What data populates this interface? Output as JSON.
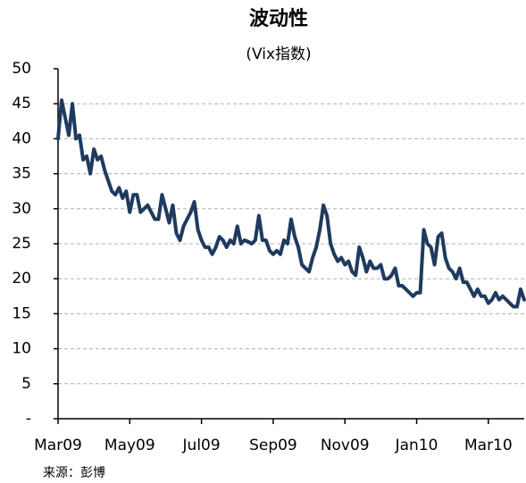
{
  "chart_data": {
    "type": "line",
    "title": "波动性",
    "subtitle": "(Vix指数)",
    "source": "来源：彭博",
    "color": "#1f3a5f",
    "grid": true,
    "categories": [
      "Mar09",
      null,
      null,
      null,
      null,
      null,
      null,
      null,
      null,
      null,
      null,
      null,
      null,
      null,
      null,
      null,
      null,
      null,
      null,
      null,
      "May09",
      null,
      null,
      null,
      null,
      null,
      null,
      null,
      null,
      null,
      null,
      null,
      null,
      null,
      null,
      null,
      null,
      null,
      null,
      null,
      "Jul09",
      null,
      null,
      null,
      null,
      null,
      null,
      null,
      null,
      null,
      null,
      null,
      null,
      null,
      null,
      null,
      null,
      null,
      null,
      null,
      "Sep09",
      null,
      null,
      null,
      null,
      null,
      null,
      null,
      null,
      null,
      null,
      null,
      null,
      null,
      null,
      null,
      null,
      null,
      null,
      null,
      "Nov09",
      null,
      null,
      null,
      null,
      null,
      null,
      null,
      null,
      null,
      null,
      null,
      null,
      null,
      null,
      null,
      null,
      null,
      null,
      null,
      "Jan10",
      null,
      null,
      null,
      null,
      null,
      null,
      null,
      null,
      null,
      null,
      null,
      null,
      null,
      null,
      null,
      null,
      null,
      null,
      null,
      "Mar10",
      null,
      null,
      null,
      null,
      null,
      null,
      null,
      null,
      null,
      null
    ],
    "values": [
      40,
      45.5,
      43,
      40.5,
      45,
      40,
      40.5,
      37,
      37.5,
      35,
      38.5,
      37,
      37.5,
      35.5,
      34,
      32.5,
      32,
      33,
      31.5,
      32.5,
      29.5,
      32,
      32,
      29.5,
      30,
      30.5,
      29.5,
      28.5,
      28.5,
      32,
      30,
      28,
      30.5,
      26.5,
      25.5,
      27.5,
      28.5,
      29.5,
      31,
      27,
      25.5,
      24.5,
      24.5,
      23.5,
      24.5,
      26,
      25.5,
      24.5,
      25.5,
      25,
      27.5,
      25,
      25.5,
      25.3,
      25,
      25.5,
      29,
      25.5,
      25.5,
      24,
      23.5,
      24,
      23.5,
      25.5,
      25,
      28.5,
      26,
      24.5,
      22,
      21.5,
      21,
      23,
      24.5,
      27,
      30.5,
      29,
      25,
      23.5,
      22.5,
      23,
      22,
      22.5,
      21,
      20.5,
      24.5,
      23,
      21,
      22.5,
      21.5,
      21.5,
      22,
      20,
      20,
      20.5,
      21.5,
      19,
      19,
      18.5,
      18,
      17.5,
      18,
      18,
      27,
      25,
      24.5,
      22,
      26,
      26.5,
      23,
      21.5,
      21,
      20,
      21.5,
      19.5,
      19.5,
      18.5,
      17.5,
      18.5,
      17.5,
      17.5,
      16.5,
      17,
      18,
      17,
      17.5,
      17,
      16.5,
      16,
      16,
      18.5,
      17
    ],
    "ylim": [
      0,
      50
    ],
    "yticks": [
      {
        "value": 0,
        "label": "-"
      },
      5,
      10,
      15,
      20,
      25,
      30,
      35,
      40,
      45,
      50
    ]
  }
}
